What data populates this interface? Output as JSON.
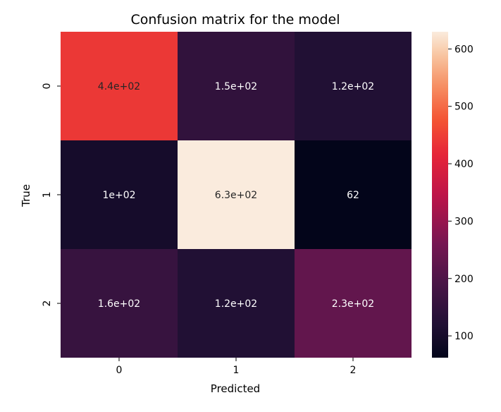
{
  "chart_data": {
    "type": "heatmap",
    "title": "Confusion matrix for the model",
    "xlabel": "Predicted",
    "ylabel": "True",
    "x_categories": [
      "0",
      "1",
      "2"
    ],
    "y_categories": [
      "0",
      "1",
      "2"
    ],
    "values": [
      [
        440,
        150,
        120
      ],
      [
        100,
        630,
        62
      ],
      [
        160,
        120,
        230
      ]
    ],
    "cell_labels": [
      [
        "4.4e+02",
        "1.5e+02",
        "1.2e+02"
      ],
      [
        "1e+02",
        "6.3e+02",
        "62"
      ],
      [
        "1.6e+02",
        "1.2e+02",
        "2.3e+02"
      ]
    ],
    "colorbar": {
      "range": [
        62,
        630
      ],
      "ticks": [
        "100",
        "200",
        "300",
        "400",
        "500",
        "600"
      ],
      "colormap": "rocket"
    }
  }
}
